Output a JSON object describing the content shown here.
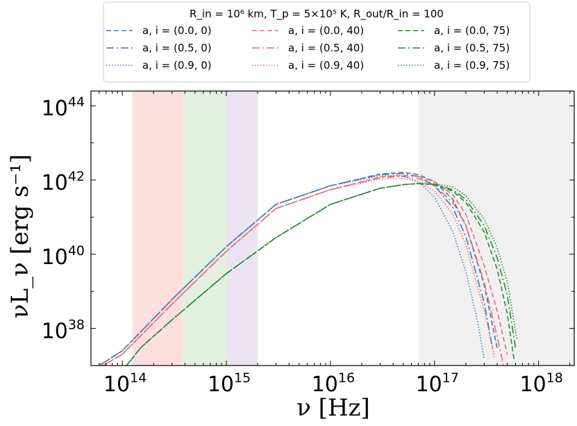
{
  "chart_data": {
    "type": "line",
    "title": "",
    "xlabel": "ν [Hz]",
    "ylabel": "νL_ν [erg s⁻¹]",
    "x_scale": "log",
    "y_scale": "log",
    "xlim": [
      50000000000000.0,
      2.2e+18
    ],
    "ylim": [
      1e+37,
      2.5e+44
    ],
    "x_ticks": [
      {
        "value": 100000000000000.0,
        "base": "10",
        "exp": "14"
      },
      {
        "value": 1000000000000000.0,
        "base": "10",
        "exp": "15"
      },
      {
        "value": 1e+16,
        "base": "10",
        "exp": "16"
      },
      {
        "value": 1e+17,
        "base": "10",
        "exp": "17"
      },
      {
        "value": 1e+18,
        "base": "10",
        "exp": "18"
      }
    ],
    "y_ticks": [
      {
        "value": 1e+38,
        "base": "10",
        "exp": "38"
      },
      {
        "value": 1e+40,
        "base": "10",
        "exp": "40"
      },
      {
        "value": 1e+42,
        "base": "10",
        "exp": "42"
      },
      {
        "value": 1e+44,
        "base": "10",
        "exp": "44"
      }
    ],
    "bands": [
      {
        "name": "band-red",
        "x0": 125000000000000.0,
        "x1": 380000000000000.0,
        "color": "#fddede"
      },
      {
        "name": "band-green",
        "x0": 380000000000000.0,
        "x1": 1000000000000000.0,
        "color": "#e3efe1"
      },
      {
        "name": "band-purple",
        "x0": 1000000000000000.0,
        "x1": 2000000000000000.0,
        "color": "#ece3f2"
      },
      {
        "name": "band-grey",
        "x0": 7e+16,
        "x1": 2.2e+18,
        "color": "#f0f0f0"
      }
    ],
    "legend": {
      "title": "R_in = 10⁶ km, T_p = 5×10⁵ K, R_out/R_in = 100",
      "placement": "top-center, above plot"
    },
    "series": [
      {
        "name": "a, i = (0.0, 0)",
        "color": "#4477aa",
        "dash": "dashed",
        "x": [
          60000000000000.0,
          100000000000000.0,
          300000000000000.0,
          1000000000000000.0,
          3000000000000000.0,
          1e+16,
          3e+16,
          5e+16,
          7e+16,
          1e+17,
          1.5e+17,
          2e+17,
          3e+17,
          4e+17
        ],
        "y": [
          1e+37,
          2.5e+37,
          6e+38,
          1.6e+40,
          2.2e+41,
          7e+41,
          1.45e+42,
          1.6e+42,
          1.4e+42,
          9e+41,
          3e+41,
          6e+40,
          1.5e+39,
          3e+37
        ]
      },
      {
        "name": "a, i = (0.5, 0)",
        "color": "#4477aa",
        "dash": "dashdot",
        "x": [
          60000000000000.0,
          100000000000000.0,
          300000000000000.0,
          1000000000000000.0,
          3000000000000000.0,
          1e+16,
          3e+16,
          5e+16,
          7e+16,
          1e+17,
          1.5e+17,
          2e+17,
          3e+17,
          3.6e+17
        ],
        "y": [
          1e+37,
          2.5e+37,
          6e+38,
          1.6e+40,
          2.2e+41,
          7e+41,
          1.4e+42,
          1.5e+42,
          1.25e+42,
          7e+41,
          1.8e+41,
          3e+40,
          5e+38,
          3e+37
        ]
      },
      {
        "name": "a, i = (0.9, 0)",
        "color": "#4477aa",
        "dash": "dotted",
        "x": [
          60000000000000.0,
          100000000000000.0,
          300000000000000.0,
          1000000000000000.0,
          3000000000000000.0,
          1e+16,
          3e+16,
          5e+16,
          7e+16,
          1e+17,
          1.5e+17,
          2e+17,
          2.6e+17,
          3e+17
        ],
        "y": [
          1e+37,
          2.5e+37,
          6e+38,
          1.6e+40,
          2.2e+41,
          7e+41,
          1.3e+42,
          1.3e+42,
          9e+41,
          3.5e+41,
          4e+40,
          3.5e+39,
          1.5e+38,
          1.5e+37
        ]
      },
      {
        "name": "a, i = (0.0, 40)",
        "color": "#ee6677",
        "dash": "dashed",
        "x": [
          65000000000000.0,
          100000000000000.0,
          300000000000000.0,
          1000000000000000.0,
          3000000000000000.0,
          1e+16,
          3e+16,
          5e+16,
          7e+16,
          1e+17,
          1.5e+17,
          2e+17,
          3e+17,
          4e+17,
          5e+17
        ],
        "y": [
          1e+37,
          2e+37,
          4.5e+38,
          1.2e+40,
          1.7e+41,
          5.5e+41,
          1.2e+42,
          1.35e+42,
          1.25e+42,
          9e+41,
          4e+41,
          1.2e+41,
          5e+39,
          3e+38,
          2e+37
        ]
      },
      {
        "name": "a, i = (0.5, 40)",
        "color": "#ee6677",
        "dash": "dashdot",
        "x": [
          65000000000000.0,
          100000000000000.0,
          300000000000000.0,
          1000000000000000.0,
          3000000000000000.0,
          1e+16,
          3e+16,
          5e+16,
          7e+16,
          1e+17,
          1.5e+17,
          2e+17,
          3e+17,
          4e+17,
          4.6e+17
        ],
        "y": [
          1e+37,
          2e+37,
          4.5e+38,
          1.2e+40,
          1.7e+41,
          5.5e+41,
          1.15e+42,
          1.25e+42,
          1.1e+42,
          7e+41,
          2.5e+41,
          6e+40,
          1.8e+39,
          6e+37,
          1e+37
        ]
      },
      {
        "name": "a, i = (0.9, 40)",
        "color": "#ee6677",
        "dash": "dotted",
        "x": [
          65000000000000.0,
          100000000000000.0,
          300000000000000.0,
          1000000000000000.0,
          3000000000000000.0,
          1e+16,
          3e+16,
          5e+16,
          7e+16,
          1e+17,
          1.5e+17,
          2e+17,
          3e+17,
          3.8e+17
        ],
        "y": [
          1e+37,
          2e+37,
          4.5e+38,
          1.2e+40,
          1.7e+41,
          5.5e+41,
          1.05e+42,
          1.1e+42,
          9e+41,
          5e+41,
          1.2e+41,
          1.8e+40,
          3e+38,
          1.5e+37
        ]
      },
      {
        "name": "a, i = (0.0, 75)",
        "color": "#228833",
        "dash": "dashed",
        "x": [
          110000000000000.0,
          150000000000000.0,
          300000000000000.0,
          1000000000000000.0,
          3000000000000000.0,
          1e+16,
          3e+16,
          5e+16,
          7e+16,
          1e+17,
          1.5e+17,
          2e+17,
          3e+17,
          4e+17,
          5e+17,
          5.8e+17
        ],
        "y": [
          1e+37,
          3e+37,
          1.7e+38,
          3e+39,
          2.8e+40,
          2.2e+41,
          6e+41,
          7.5e+41,
          8e+41,
          7.5e+41,
          5e+41,
          2.5e+41,
          4e+40,
          4e+39,
          2.5e+38,
          1.5e+37
        ]
      },
      {
        "name": "a, i = (0.5, 75)",
        "color": "#228833",
        "dash": "dashdot",
        "x": [
          110000000000000.0,
          150000000000000.0,
          300000000000000.0,
          1000000000000000.0,
          3000000000000000.0,
          1e+16,
          3e+16,
          5e+16,
          7e+16,
          1e+17,
          1.5e+17,
          2e+17,
          3e+17,
          4e+17,
          5e+17,
          6e+17
        ],
        "y": [
          1e+37,
          3e+37,
          1.7e+38,
          3e+39,
          2.8e+40,
          2.2e+41,
          6e+41,
          7.5e+41,
          8e+41,
          7.6e+41,
          5.5e+41,
          3e+41,
          6e+40,
          8e+39,
          8e+38,
          3e+37
        ]
      },
      {
        "name": "a, i = (0.9, 75)",
        "color": "#228833",
        "dash": "dotted",
        "x": [
          110000000000000.0,
          150000000000000.0,
          300000000000000.0,
          1000000000000000.0,
          3000000000000000.0,
          1e+16,
          3e+16,
          5e+16,
          7e+16,
          1e+17,
          1.5e+17,
          2e+17,
          3e+17,
          4e+17,
          5e+17,
          6.2e+17
        ],
        "y": [
          1e+37,
          3e+37,
          1.7e+38,
          3e+39,
          2.8e+40,
          2.2e+41,
          6e+41,
          7.5e+41,
          8.2e+41,
          8e+41,
          6.5e+41,
          3.8e+41,
          9e+40,
          1.5e+40,
          1.8e+39,
          5e+37
        ]
      }
    ]
  }
}
